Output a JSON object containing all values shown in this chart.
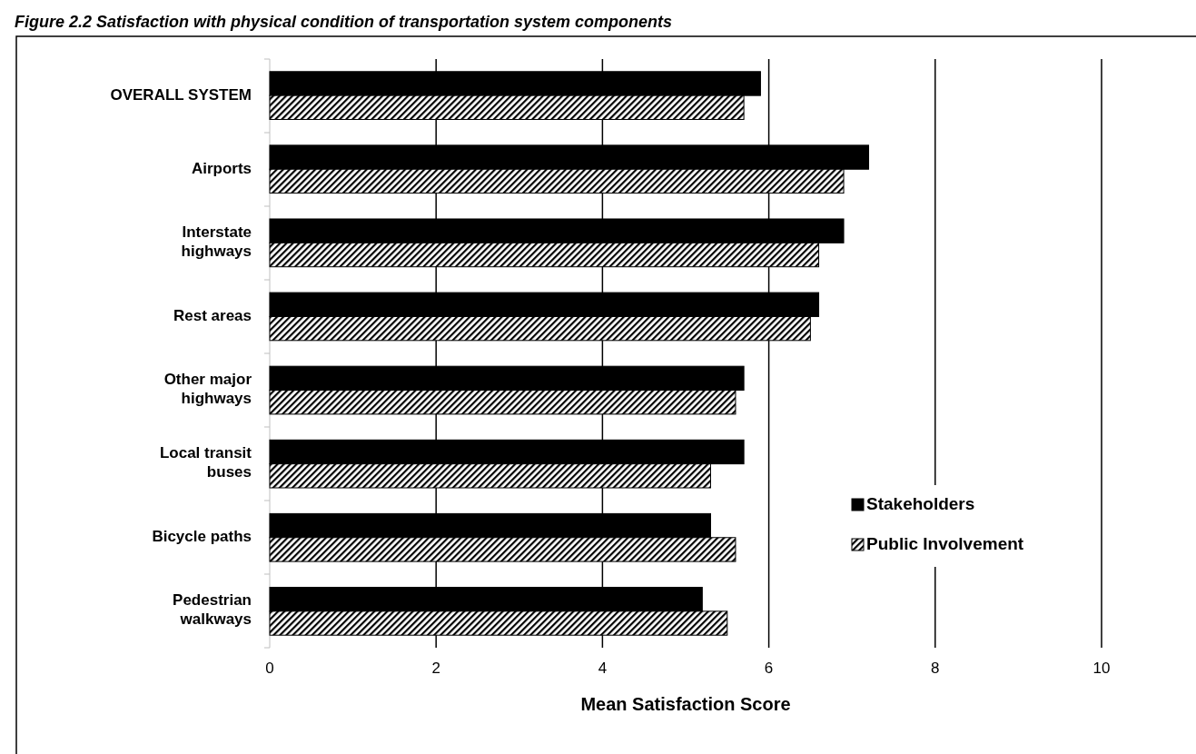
{
  "chart_data": {
    "type": "bar",
    "orientation": "horizontal",
    "title": "Figure 2.2 Satisfaction with physical condition of transportation system components",
    "xlabel": "Mean Satisfaction Score",
    "categories": [
      "OVERALL SYSTEM",
      "Airports",
      "Interstate highways",
      "Rest areas",
      "Other major highways",
      "Local transit buses",
      "Bicycle paths",
      "Pedestrian walkways"
    ],
    "series": [
      {
        "name": "Stakeholders",
        "color": "#000000",
        "values": [
          5.9,
          7.2,
          6.9,
          6.6,
          5.7,
          5.7,
          5.3,
          5.2
        ]
      },
      {
        "name": "Public Involvement",
        "color": "#000000",
        "values": [
          5.7,
          6.9,
          6.6,
          6.5,
          5.6,
          5.3,
          5.6,
          5.5
        ]
      }
    ],
    "xlim": [
      0,
      10
    ],
    "xticks": [
      0,
      2,
      4,
      6,
      8,
      10
    ],
    "grid": "x",
    "legend": "right"
  }
}
